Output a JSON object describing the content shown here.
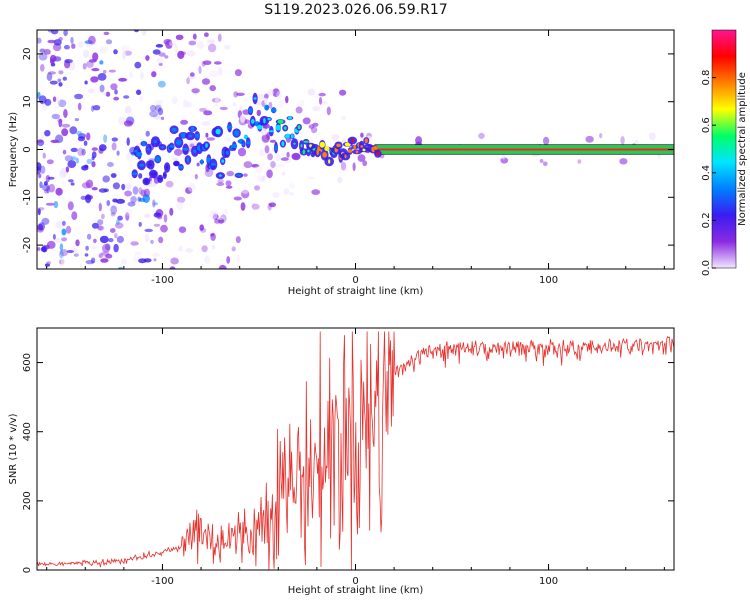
{
  "title": "S119.2023.026.06.59.R17",
  "chart_data": [
    {
      "type": "heatmap",
      "xlabel": "Height of straight line (km)",
      "ylabel": "Frequency (Hz)",
      "xlim": [
        -165,
        165
      ],
      "ylim": [
        -25,
        25
      ],
      "xticks": [
        -100,
        0,
        100
      ],
      "yticks": [
        -20,
        -10,
        0,
        10,
        20
      ],
      "grid": false,
      "colorbar": {
        "label": "Normalized spectral amplitude",
        "range": [
          0,
          1
        ],
        "ticks": [
          "0.0",
          "0.2",
          "0.4",
          "0.6",
          "0.8"
        ],
        "colors": [
          "#f2e6ff",
          "#8a2be2",
          "#3a1cf0",
          "#0080ff",
          "#00e5ff",
          "#00ff66",
          "#ffff00",
          "#ff8000",
          "#ff0000",
          "#ff1493"
        ]
      },
      "ridge": {
        "description_points": [
          {
            "x": -115,
            "y": -4,
            "amp": 0.35
          },
          {
            "x": -100,
            "y": -2,
            "amp": 0.35
          },
          {
            "x": -85,
            "y": 0,
            "amp": 0.4
          },
          {
            "x": -70,
            "y": -1,
            "amp": 0.45
          },
          {
            "x": -55,
            "y": 3,
            "amp": 0.45
          },
          {
            "x": -40,
            "y": 5,
            "amp": 0.5
          },
          {
            "x": -30,
            "y": 2,
            "amp": 0.6
          },
          {
            "x": -20,
            "y": 0,
            "amp": 0.8
          },
          {
            "x": -10,
            "y": -1,
            "amp": 0.85
          },
          {
            "x": 0,
            "y": 0.5,
            "amp": 0.9
          },
          {
            "x": 10,
            "y": 0,
            "amp": 0.95
          },
          {
            "x": 165,
            "y": 0,
            "amp": 0.95
          }
        ]
      }
    },
    {
      "type": "line",
      "xlabel": "Height of straight line (km)",
      "ylabel": "SNR (10 * v/v)",
      "xlim": [
        -165,
        165
      ],
      "ylim": [
        0,
        700
      ],
      "xticks": [
        -100,
        0,
        100
      ],
      "yticks": [
        0,
        200,
        400,
        600
      ],
      "grid": false,
      "series": [
        {
          "color": "#e8302c",
          "x": [
            -165,
            -140,
            -120,
            -110,
            -100,
            -90,
            -85,
            -80,
            -75,
            -70,
            -60,
            -50,
            -45,
            -40,
            -35,
            -30,
            -25,
            -20,
            -15,
            -10,
            -5,
            0,
            5,
            10,
            15,
            20,
            30,
            40,
            50,
            60,
            80,
            100,
            120,
            140,
            165
          ],
          "y": [
            15,
            18,
            25,
            35,
            50,
            60,
            110,
            120,
            80,
            90,
            95,
            120,
            180,
            220,
            250,
            260,
            280,
            300,
            330,
            360,
            380,
            400,
            420,
            460,
            520,
            580,
            620,
            640,
            650,
            650,
            650,
            655,
            655,
            660,
            665
          ]
        }
      ]
    }
  ]
}
